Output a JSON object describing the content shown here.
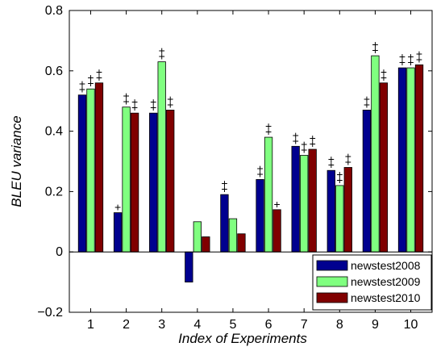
{
  "chart_data": {
    "type": "bar",
    "title": "",
    "xlabel": "Index of Experiments",
    "ylabel": "BLEU variance",
    "categories": [
      "1",
      "2",
      "3",
      "4",
      "5",
      "6",
      "7",
      "8",
      "9",
      "10"
    ],
    "ylim": [
      -0.2,
      0.8
    ],
    "yticks": [
      -0.2,
      0,
      0.2,
      0.4,
      0.6,
      0.8
    ],
    "ytick_labels": [
      "−0.2",
      "0",
      "0.2",
      "0.4",
      "0.6",
      "0.8"
    ],
    "grid": false,
    "legend_position": "bottom-right",
    "significance_marker": "+",
    "series": [
      {
        "name": "newstest2008",
        "color": "#00008f",
        "values": [
          0.52,
          0.13,
          0.46,
          -0.1,
          0.19,
          0.24,
          0.35,
          0.27,
          0.47,
          0.61
        ],
        "significance": [
          2,
          1,
          2,
          0,
          2,
          2,
          2,
          2,
          2,
          2
        ]
      },
      {
        "name": "newstest2009",
        "color": "#80ff80",
        "values": [
          0.54,
          0.48,
          0.63,
          0.1,
          0.11,
          0.38,
          0.32,
          0.22,
          0.65,
          0.61
        ],
        "significance": [
          2,
          2,
          2,
          0,
          0,
          2,
          2,
          2,
          2,
          2
        ]
      },
      {
        "name": "newstest2010",
        "color": "#800000",
        "values": [
          0.56,
          0.46,
          0.47,
          0.05,
          0.06,
          0.14,
          0.34,
          0.28,
          0.56,
          0.62
        ],
        "significance": [
          2,
          2,
          2,
          0,
          0,
          1,
          2,
          2,
          2,
          2
        ]
      }
    ]
  }
}
